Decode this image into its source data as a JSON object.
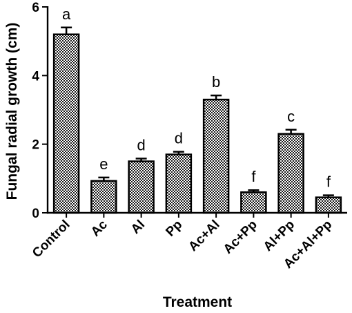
{
  "chart_data": {
    "type": "bar",
    "title": "",
    "xlabel": "Treatment",
    "ylabel": "Fungal radial growth (cm)",
    "ylim": [
      0,
      6
    ],
    "yticks": [
      "0",
      "2",
      "4",
      "6"
    ],
    "categories": [
      "Control",
      "Ac",
      "Al",
      "Pp",
      "Ac+Al",
      "Ac+Pp",
      "Al+Pp",
      "Ac+Al+Pp"
    ],
    "values": [
      5.2,
      0.93,
      1.5,
      1.7,
      3.3,
      0.6,
      2.3,
      0.45
    ],
    "errors": [
      0.2,
      0.1,
      0.08,
      0.08,
      0.12,
      0.06,
      0.12,
      0.06
    ],
    "significance": [
      "a",
      "e",
      "d",
      "d",
      "b",
      "f",
      "c",
      "f"
    ],
    "bar_fill": "checkered",
    "colors": {
      "bar_light": "#ffffff",
      "bar_dark": "#000000",
      "axis": "#000000"
    }
  }
}
